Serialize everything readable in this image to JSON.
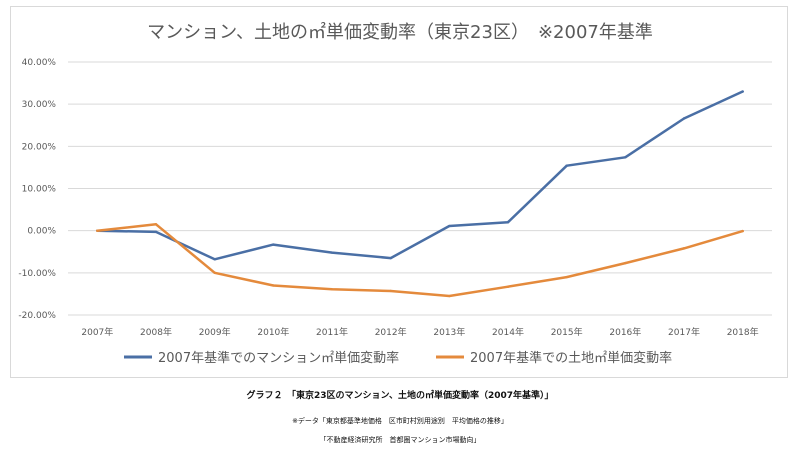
{
  "chart_data": {
    "type": "line",
    "title": "マンション、土地の㎡単価変動率（東京23区）　※2007年基準",
    "xlabel": "",
    "ylabel": "",
    "categories": [
      "2007年",
      "2008年",
      "2009年",
      "2010年",
      "2011年",
      "2012年",
      "2013年",
      "2014年",
      "2015年",
      "2016年",
      "2017年",
      "2018年"
    ],
    "y_unit": "percent",
    "ylim": [
      -20,
      40
    ],
    "yticks": [
      -20,
      -10,
      0,
      10,
      20,
      30,
      40
    ],
    "ytick_labels": [
      "-20.00%",
      "-10.00%",
      "0.00%",
      "10.00%",
      "20.00%",
      "30.00%",
      "40.00%"
    ],
    "grid": "horizontal",
    "legend_position": "bottom",
    "series": [
      {
        "name": "2007年基準でのマンション㎡単価変動率",
        "color": "#4a6fa5",
        "values": [
          0.0,
          -0.3,
          -6.8,
          -3.3,
          -5.2,
          -6.5,
          1.1,
          2.0,
          15.4,
          17.4,
          26.6,
          33.0
        ]
      },
      {
        "name": "2007年基準での土地㎡単価変動率",
        "color": "#e48a3c",
        "values": [
          0.0,
          1.5,
          -10.0,
          -13.0,
          -13.9,
          -14.3,
          -15.5,
          -13.3,
          -11.0,
          -7.7,
          -4.2,
          -0.1
        ]
      }
    ]
  },
  "captions": {
    "main": "グラフ２　「東京23区のマンション、土地の㎡単価変動率（2007年基準）」",
    "source1": "※データ「東京都基準地価格　区市町村別用途別　平均価格の推移」",
    "source2": "「不動産経済研究所　首都圏マンション市場動向」"
  }
}
